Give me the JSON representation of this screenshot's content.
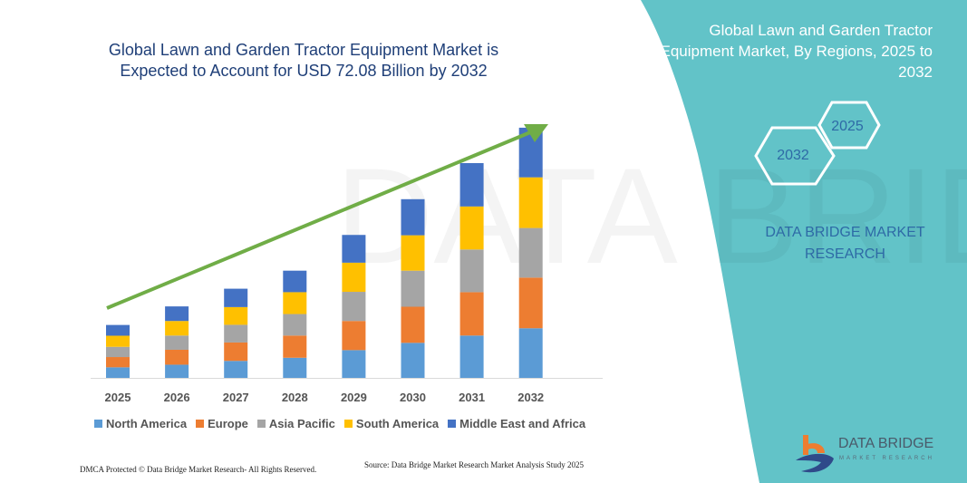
{
  "chart_title": "Global Lawn and Garden Tractor Equipment Market is Expected to Account for USD 72.08 Billion by 2032",
  "panel": {
    "title": "Global Lawn and Garden Tractor Equipment Market, By Regions, 2025 to 2032",
    "hex_start": "2025",
    "hex_end": "2032",
    "brand": "DATA BRIDGE MARKET RESEARCH",
    "logo_text": "DATA BRIDGE",
    "logo_sub": "MARKET RESEARCH",
    "color": "#62c3c8"
  },
  "footer": {
    "copyright": "DMCA Protected © Data Bridge Market Research- All Rights Reserved.",
    "source": "Source: Data Bridge Market Research Market Analysis Study 2025"
  },
  "chart_data": {
    "type": "bar",
    "stacked": true,
    "categories": [
      "2025",
      "2026",
      "2027",
      "2028",
      "2029",
      "2030",
      "2031",
      "2032"
    ],
    "series": [
      {
        "name": "North America",
        "color": "#5b9bd5",
        "values": [
          3.05,
          3.8,
          4.9,
          5.8,
          8.0,
          10.1,
          12.2,
          14.3
        ]
      },
      {
        "name": "Europe",
        "color": "#ed7d31",
        "values": [
          2.95,
          4.3,
          5.3,
          6.4,
          8.4,
          10.4,
          12.5,
          14.6
        ]
      },
      {
        "name": "Asia Pacific",
        "color": "#a5a5a5",
        "values": [
          2.95,
          4.1,
          5.1,
          6.2,
          8.4,
          10.4,
          12.3,
          14.3
        ]
      },
      {
        "name": "South America",
        "color": "#ffc000",
        "values": [
          3.2,
          4.2,
          5.1,
          6.3,
          8.4,
          10.2,
          12.4,
          14.6
        ]
      },
      {
        "name": "Middle East and Africa",
        "color": "#4472c4",
        "values": [
          3.1,
          4.2,
          5.3,
          6.2,
          8.0,
          10.4,
          12.5,
          14.3
        ]
      }
    ],
    "ylim": [
      0,
      72.08
    ],
    "y_axis_shown": false,
    "grid": false,
    "legend": "bottom",
    "trend_arrow_color": "#70ad47"
  }
}
